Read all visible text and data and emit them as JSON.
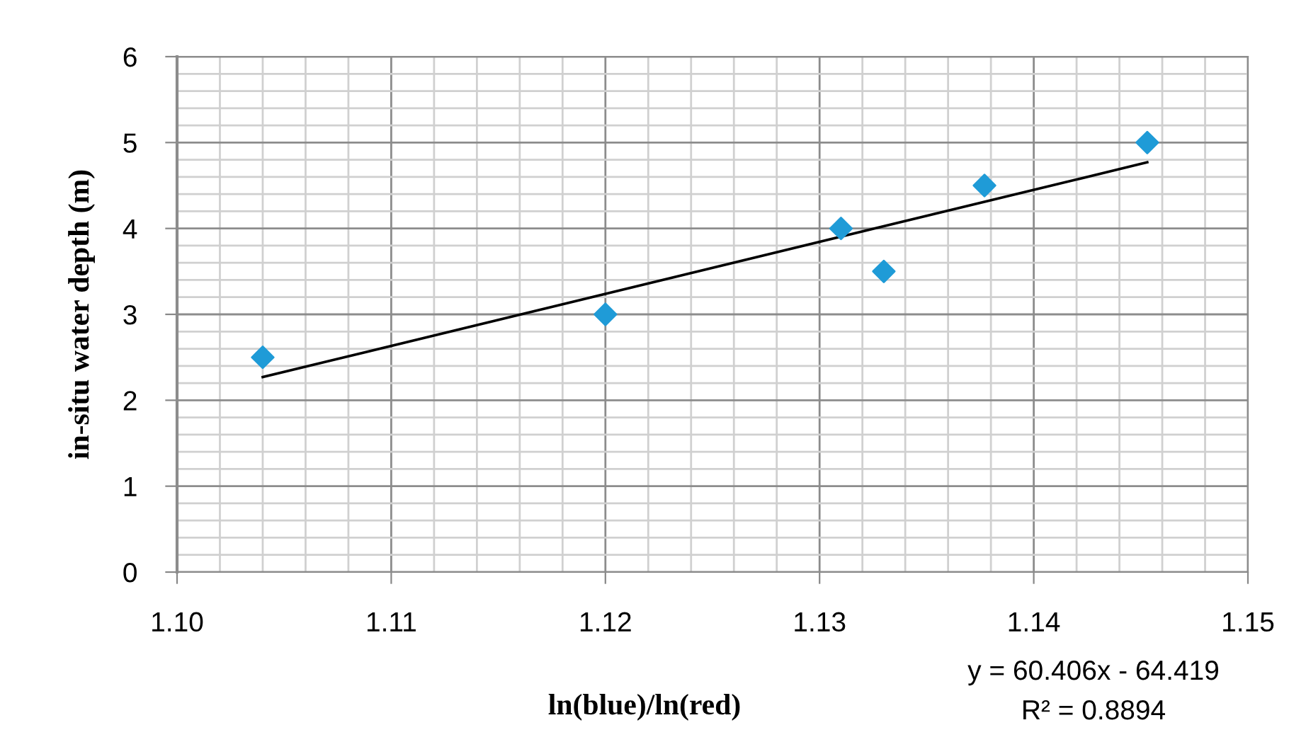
{
  "chart_data": {
    "type": "scatter",
    "xlabel": "ln(blue)/ln(red)",
    "ylabel": "in-situ water depth (m)",
    "series": [
      {
        "color": "#1f9bd7",
        "marker": "diamond",
        "x": [
          1.104,
          1.12,
          1.131,
          1.133,
          1.1377,
          1.1453
        ],
        "values": [
          2.5,
          3.0,
          4.0,
          3.5,
          4.5,
          5.0
        ]
      },
      {
        "type": "line",
        "color": "#000000",
        "marker": "none",
        "x": [
          1.104,
          1.1453
        ],
        "values": [
          2.27,
          4.77
        ]
      }
    ],
    "annotations": [
      "y = 60.406x - 64.419",
      "R² = 0.8894"
    ],
    "xlim": [
      1.1,
      1.15
    ],
    "ylim": [
      0,
      6
    ],
    "xticks": [
      {
        "value": 1.1,
        "label": "1.10"
      },
      {
        "value": 1.102,
        "label": null
      },
      {
        "value": 1.104,
        "label": null
      },
      {
        "value": 1.106,
        "label": null
      },
      {
        "value": 1.108,
        "label": null
      },
      {
        "value": 1.11,
        "label": "1.11"
      },
      {
        "value": 1.112,
        "label": null
      },
      {
        "value": 1.114,
        "label": null
      },
      {
        "value": 1.116,
        "label": null
      },
      {
        "value": 1.118,
        "label": null
      },
      {
        "value": 1.12,
        "label": "1.12"
      },
      {
        "value": 1.122,
        "label": null
      },
      {
        "value": 1.124,
        "label": null
      },
      {
        "value": 1.126,
        "label": null
      },
      {
        "value": 1.128,
        "label": null
      },
      {
        "value": 1.13,
        "label": "1.13"
      },
      {
        "value": 1.132,
        "label": null
      },
      {
        "value": 1.134,
        "label": null
      },
      {
        "value": 1.136,
        "label": null
      },
      {
        "value": 1.138,
        "label": null
      },
      {
        "value": 1.14,
        "label": "1.14"
      },
      {
        "value": 1.142,
        "label": null
      },
      {
        "value": 1.144,
        "label": null
      },
      {
        "value": 1.146,
        "label": null
      },
      {
        "value": 1.148,
        "label": null
      },
      {
        "value": 1.15,
        "label": "1.15"
      }
    ],
    "yticks": [
      0,
      {
        "value": 0.2,
        "label": null
      },
      {
        "value": 0.4,
        "label": null
      },
      {
        "value": 0.6,
        "label": null
      },
      {
        "value": 0.8,
        "label": null
      },
      1,
      {
        "value": 1.2,
        "label": null
      },
      {
        "value": 1.4,
        "label": null
      },
      {
        "value": 1.6,
        "label": null
      },
      {
        "value": 1.8,
        "label": null
      },
      2,
      {
        "value": 2.2,
        "label": null
      },
      {
        "value": 2.4,
        "label": null
      },
      {
        "value": 2.6,
        "label": null
      },
      {
        "value": 2.8,
        "label": null
      },
      3,
      {
        "value": 3.2,
        "label": null
      },
      {
        "value": 3.4,
        "label": null
      },
      {
        "value": 3.6,
        "label": null
      },
      {
        "value": 3.8,
        "label": null
      },
      4,
      {
        "value": 4.2,
        "label": null
      },
      {
        "value": 4.4,
        "label": null
      },
      {
        "value": 4.6,
        "label": null
      },
      {
        "value": 4.8,
        "label": null
      },
      5,
      {
        "value": 5.2,
        "label": null
      },
      {
        "value": 5.4,
        "label": null
      },
      {
        "value": 5.6,
        "label": null
      },
      {
        "value": 5.8,
        "label": null
      },
      6
    ],
    "grid": true,
    "legend": false
  }
}
